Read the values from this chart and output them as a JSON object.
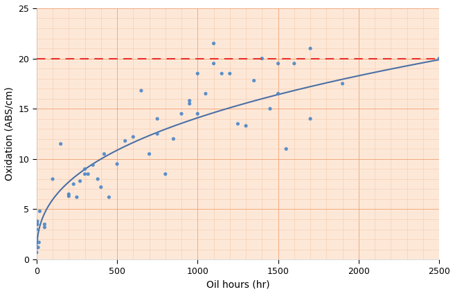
{
  "scatter_x": [
    0,
    0,
    0,
    0,
    5,
    5,
    10,
    15,
    20,
    50,
    50,
    100,
    150,
    200,
    200,
    230,
    250,
    270,
    300,
    300,
    320,
    350,
    380,
    400,
    420,
    450,
    500,
    550,
    600,
    650,
    700,
    750,
    750,
    800,
    850,
    900,
    950,
    950,
    1000,
    1000,
    1050,
    1100,
    1100,
    1150,
    1200,
    1250,
    1300,
    1350,
    1400,
    1450,
    1500,
    1500,
    1550,
    1600,
    1700,
    1700,
    1900,
    2500
  ],
  "scatter_y": [
    0.7,
    2.0,
    3.0,
    3.5,
    3.5,
    3.8,
    1.2,
    1.7,
    4.8,
    3.2,
    3.5,
    8.0,
    11.5,
    6.5,
    6.3,
    7.5,
    6.2,
    7.8,
    8.5,
    9.0,
    8.5,
    9.4,
    8.0,
    7.2,
    10.5,
    6.2,
    9.5,
    11.8,
    12.2,
    16.8,
    10.5,
    12.5,
    14.0,
    8.5,
    12.0,
    14.5,
    15.5,
    15.8,
    18.5,
    14.5,
    16.5,
    21.5,
    19.5,
    18.5,
    18.5,
    13.5,
    13.3,
    17.8,
    20.0,
    15.0,
    19.5,
    16.5,
    11.0,
    19.5,
    14.0,
    21.0,
    17.5,
    20.0
  ],
  "curve_color": "#4a6fa5",
  "scatter_color": "#4a86c8",
  "dashed_line_y": 20,
  "dashed_line_color": "#e8302a",
  "xlim": [
    0,
    2500
  ],
  "ylim": [
    0,
    25
  ],
  "xticks": [
    0,
    500,
    1000,
    1500,
    2000,
    2500
  ],
  "yticks": [
    0,
    5,
    10,
    15,
    20,
    25
  ],
  "xlabel": "Oil hours (hr)",
  "ylabel": "Oxidation (ABS/cm)",
  "grid_major_color": "#f0a070",
  "grid_minor_color": "#f5c8a8",
  "plot_bg_color": "#fde8d8",
  "outer_bg_color": "#ffffff",
  "xlabel_fontsize": 10,
  "ylabel_fontsize": 10,
  "tick_fontsize": 9,
  "curve_a": 0.38,
  "curve_b": 0.55
}
